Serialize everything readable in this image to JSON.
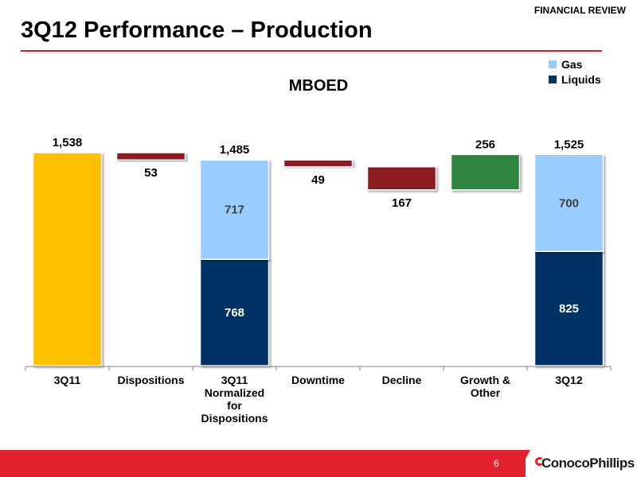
{
  "header": {
    "section": "FINANCIAL REVIEW",
    "title": "3Q12 Performance – Production"
  },
  "legend": {
    "gas": {
      "label": "Gas",
      "color": "#99ccff"
    },
    "liquids": {
      "label": "Liquids",
      "color": "#003366"
    }
  },
  "footer": {
    "page_number": "6",
    "logo_text": "ConocoPhillips"
  },
  "colors": {
    "total_3q11": "#ffc000",
    "decrease": "#8b1a22",
    "increase": "#2e8540",
    "gas": "#99ccff",
    "liquids": "#003366",
    "accent_red": "#e2232e"
  },
  "chart_data": {
    "type": "bar",
    "subtitle": "MBOED",
    "categories": [
      "3Q11",
      "Dispositions",
      "3Q11 Normalized for Dispositions",
      "Downtime",
      "Decline",
      "Growth & Other",
      "3Q12"
    ],
    "category_label_lines": [
      [
        "3Q11"
      ],
      [
        "Dispositions"
      ],
      [
        "3Q11",
        "Normalized",
        "for",
        "Dispositions"
      ],
      [
        "Downtime"
      ],
      [
        "Decline"
      ],
      [
        "Growth &",
        "Other"
      ],
      [
        "3Q12"
      ]
    ],
    "bars": [
      {
        "category": "3Q11",
        "kind": "total",
        "value": 1538,
        "label": "1,538"
      },
      {
        "category": "Dispositions",
        "kind": "decrease",
        "from": 1538,
        "to": 1485,
        "value": 53,
        "label": "53"
      },
      {
        "category": "3Q11 Normalized for Dispositions",
        "kind": "stacked",
        "liquids": 768,
        "gas": 717,
        "total": 1485,
        "total_label": "1,485",
        "liquids_label": "768",
        "gas_label": "717"
      },
      {
        "category": "Downtime",
        "kind": "decrease",
        "from": 1485,
        "to": 1436,
        "value": 49,
        "label": "49"
      },
      {
        "category": "Decline",
        "kind": "decrease",
        "from": 1436,
        "to": 1269,
        "value": 167,
        "label": "167"
      },
      {
        "category": "Growth & Other",
        "kind": "increase",
        "from": 1269,
        "to": 1525,
        "value": 256,
        "label": "256"
      },
      {
        "category": "3Q12",
        "kind": "stacked",
        "liquids": 825,
        "gas": 700,
        "total": 1525,
        "total_label": "1,525",
        "liquids_label": "825",
        "gas_label": "700"
      }
    ],
    "ylim": [
      0,
      1538
    ]
  }
}
